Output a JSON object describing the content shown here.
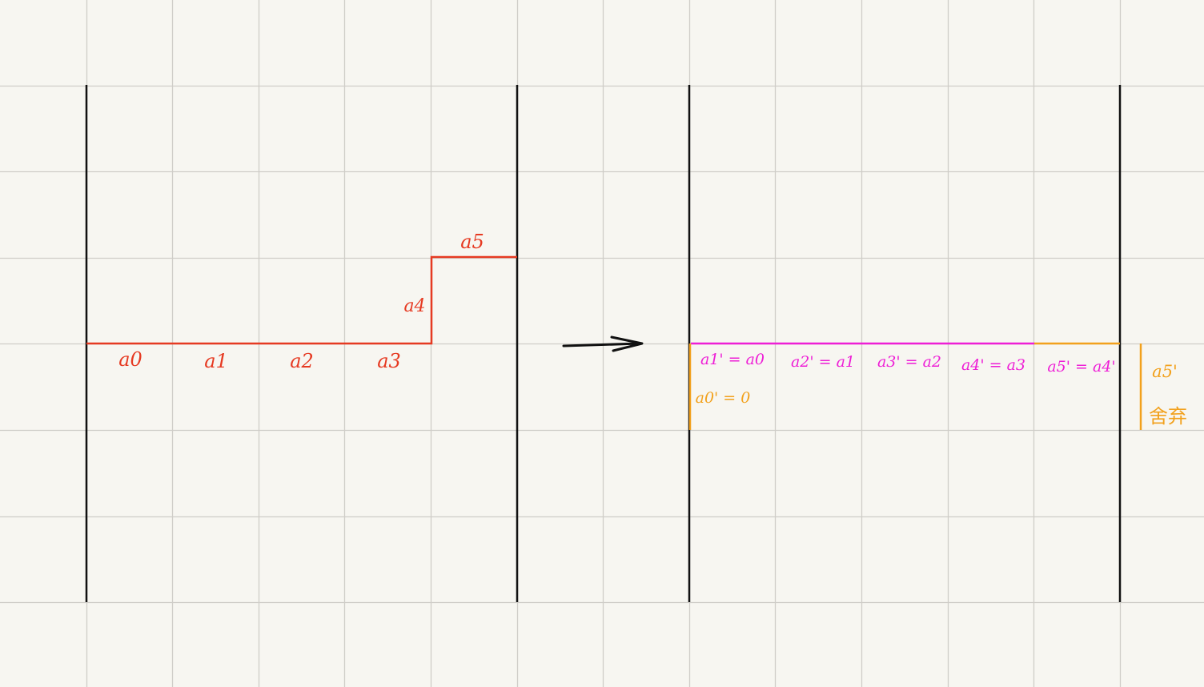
{
  "colors": {
    "paper": "#f7f6f1",
    "grid": "#cfcdc8",
    "ink": "#111111",
    "red": "#e63a22",
    "magenta": "#ee1fd6",
    "orange": "#f2a11d"
  },
  "before": {
    "labels": {
      "a0": "a0",
      "a1": "a1",
      "a2": "a2",
      "a3": "a3",
      "a4": "a4",
      "a5": "a5"
    }
  },
  "arrow": {
    "icon": "right-arrow-icon"
  },
  "after": {
    "labels": {
      "a1": "a1' = a0",
      "a2": "a2' = a1",
      "a3": "a3' = a2",
      "a4": "a4' = a3",
      "a5": "a5' = a4'",
      "a0": "a0' = 0",
      "discard_value": "a5'",
      "discard_note": "舍弃"
    }
  }
}
